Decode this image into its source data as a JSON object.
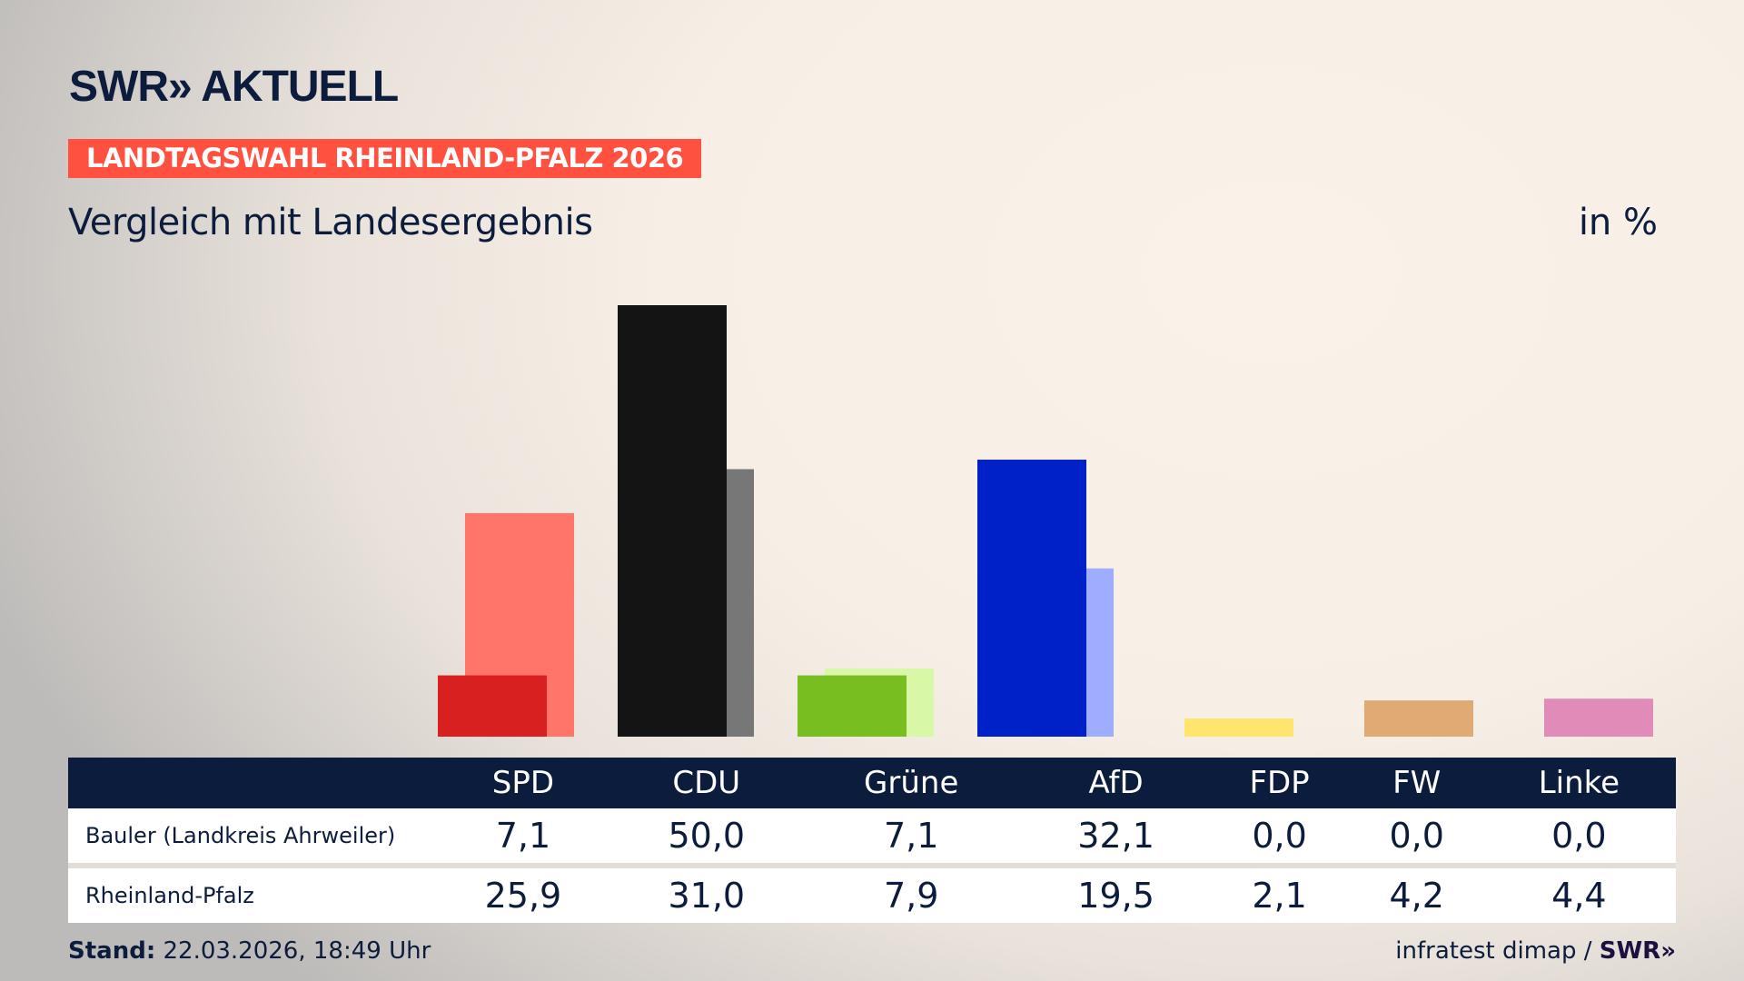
{
  "header": {
    "logo": "SWR» AKTUELL",
    "banner": "LANDTAGSWAHL RHEINLAND-PFALZ 2026",
    "subtitle": "Vergleich mit Landesergebnis",
    "unit": "in %"
  },
  "chart_data": {
    "type": "bar",
    "categories": [
      "SPD",
      "CDU",
      "Grüne",
      "AfD",
      "FDP",
      "FW",
      "Linke"
    ],
    "series": [
      {
        "name": "Bauler (Landkreis Ahrweiler)",
        "values": [
          7.1,
          50.0,
          7.1,
          32.1,
          0.0,
          0.0,
          0.0
        ],
        "display": [
          "7,1",
          "50,0",
          "7,1",
          "32,1",
          "0,0",
          "0,0",
          "0,0"
        ],
        "colors": [
          "#d7201f",
          "#141414",
          "#78be20",
          "#0020c8",
          "#ffe46e",
          "#e0aa74",
          "#e08bb8"
        ]
      },
      {
        "name": "Rheinland-Pfalz",
        "values": [
          25.9,
          31.0,
          7.9,
          19.5,
          2.1,
          4.2,
          4.4
        ],
        "display": [
          "25,9",
          "31,0",
          "7,9",
          "19,5",
          "2,1",
          "4,2",
          "4,4"
        ],
        "colors": [
          "#ff756a",
          "#777777",
          "#d8f8a8",
          "#9eadff",
          "#ffe46e",
          "#e0aa74",
          "#e08bb8"
        ]
      }
    ],
    "ylim": [
      0,
      50
    ],
    "ylabel": "in %"
  },
  "footer": {
    "stand_label": "Stand:",
    "stand_value": "22.03.2026, 18:49 Uhr",
    "source": "infratest dimap /",
    "source_logo": "SWR»"
  }
}
